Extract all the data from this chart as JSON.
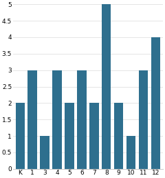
{
  "categories": [
    "K",
    "1",
    "3",
    "4",
    "5",
    "6",
    "7",
    "8",
    "9",
    "10",
    "11",
    "12"
  ],
  "values": [
    2,
    3,
    1,
    3,
    2,
    3,
    2,
    5,
    2,
    1,
    3,
    4
  ],
  "bar_color": "#2e6f8e",
  "ylim": [
    0,
    5
  ],
  "yticks": [
    0,
    0.5,
    1,
    1.5,
    2,
    2.5,
    3,
    3.5,
    4,
    4.5,
    5
  ],
  "background_color": "#ffffff"
}
